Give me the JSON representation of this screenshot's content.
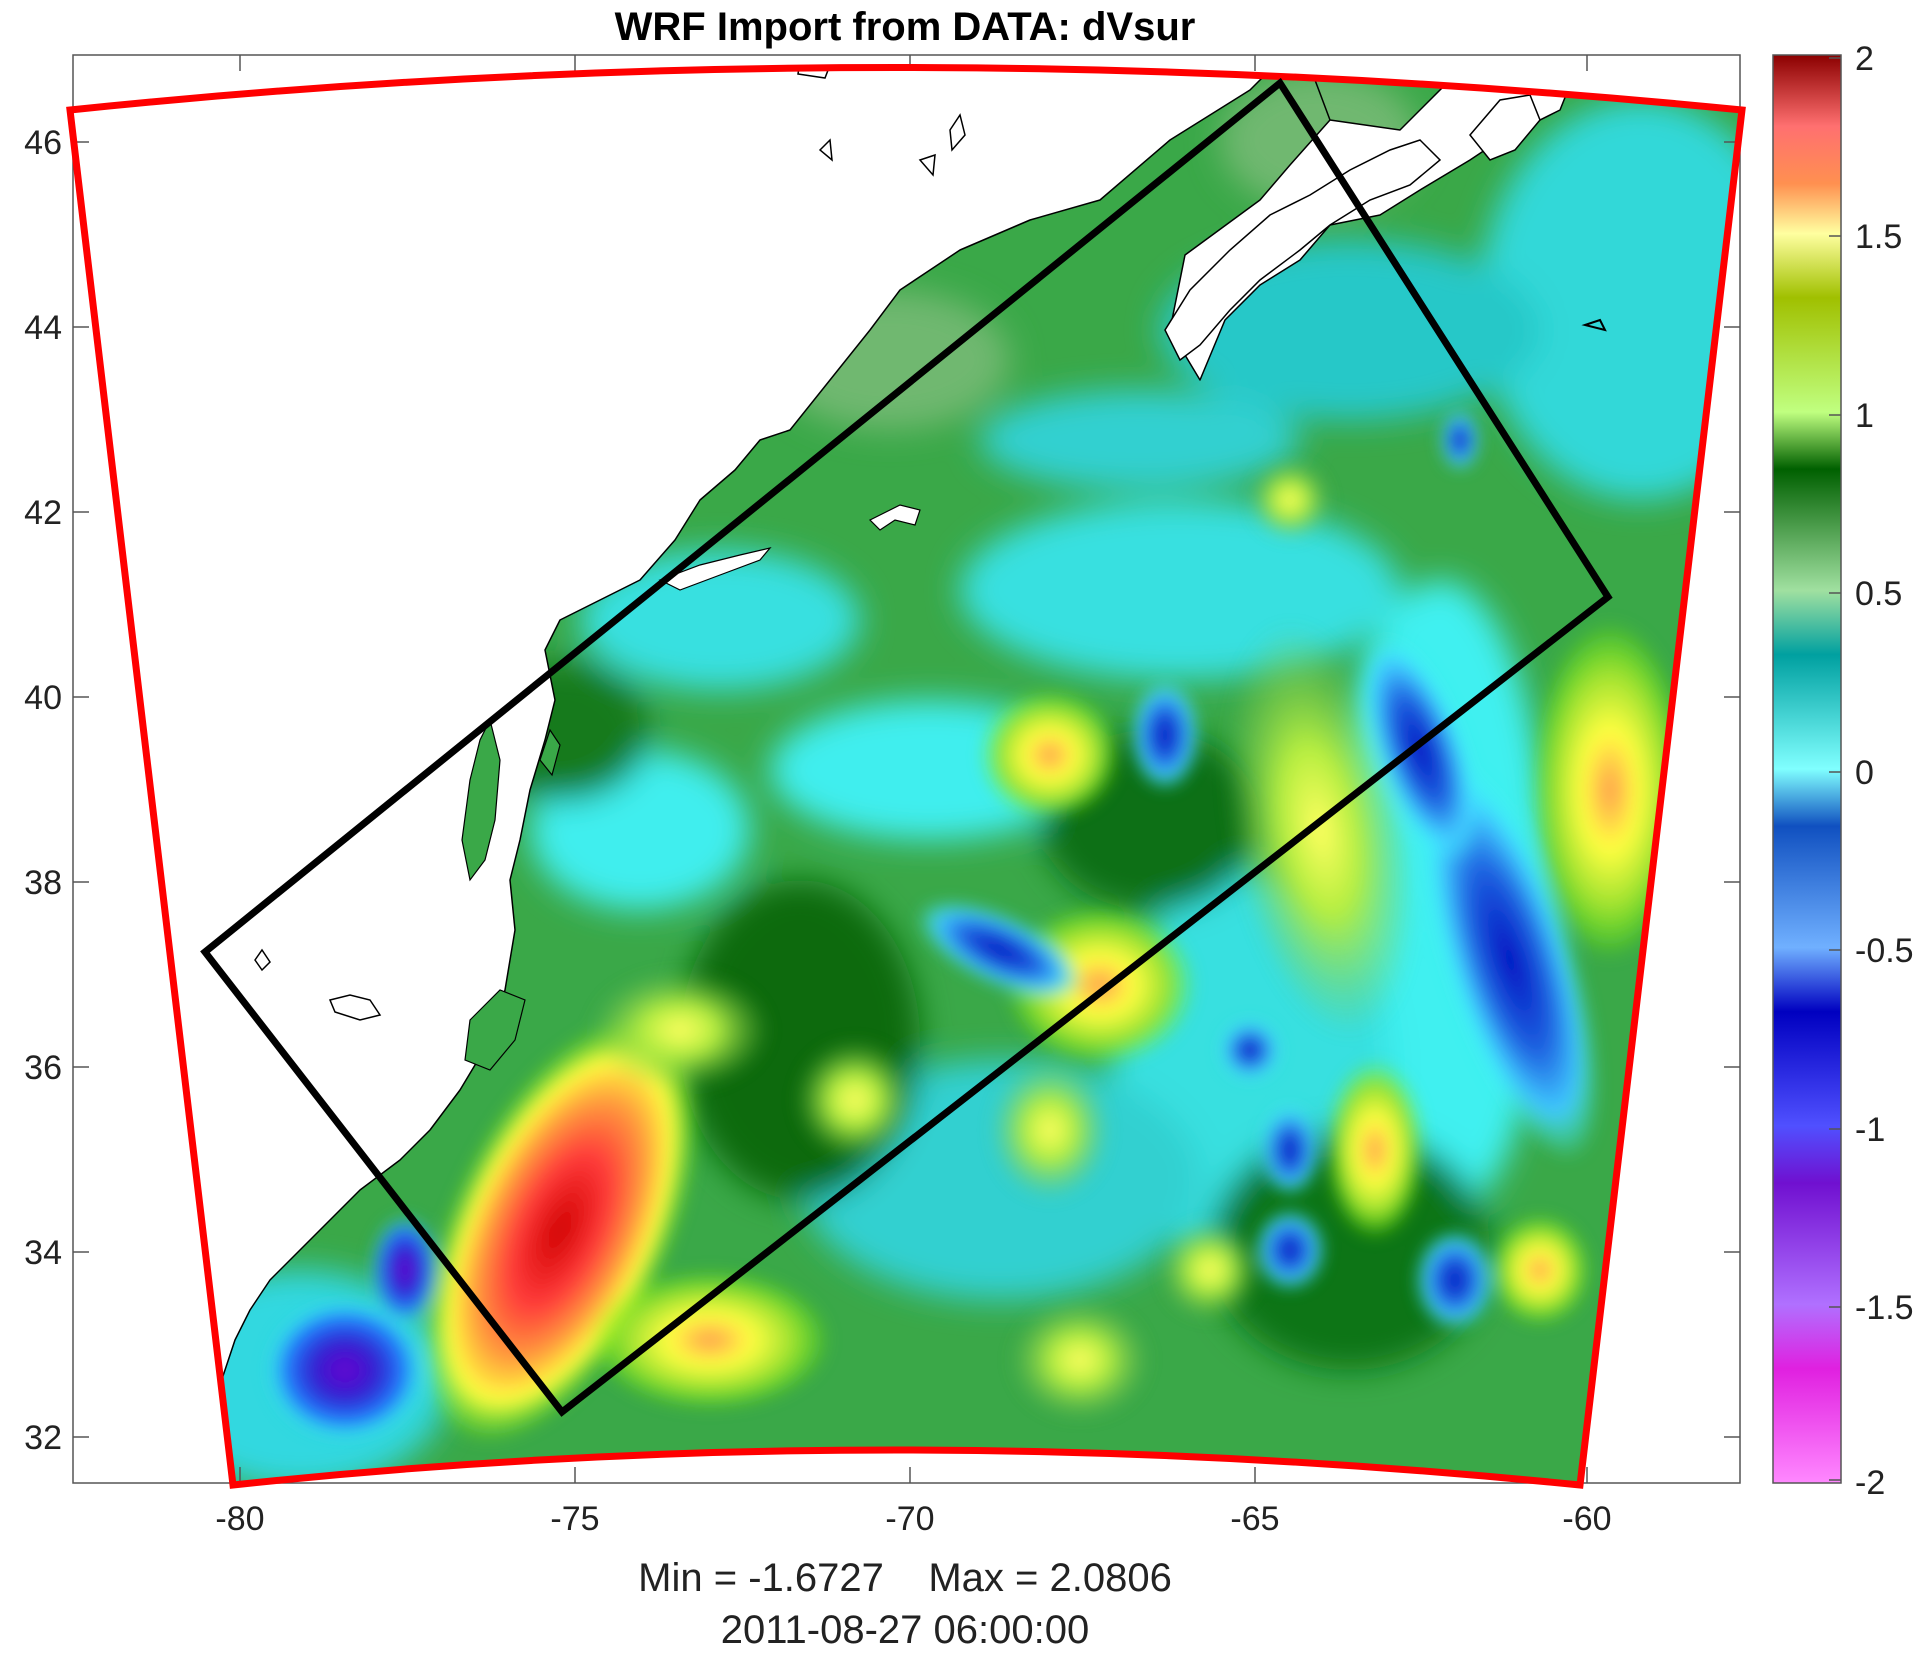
{
  "title": "WRF Import from DATA: dVsur",
  "stats": "Min = -1.6727    Max = 2.0806",
  "timestamp": "2011-08-27 06:00:00",
  "x_ticks": [
    "-80",
    "-75",
    "-70",
    "-65",
    "-60"
  ],
  "y_ticks": [
    "46",
    "44",
    "42",
    "40",
    "38",
    "36",
    "34",
    "32"
  ],
  "colorbar": {
    "ticks": [
      "2",
      "1.5",
      "1",
      "0.5",
      "0",
      "-0.5",
      "-1",
      "-1.5",
      "-2"
    ],
    "range": [
      -2,
      2
    ],
    "colors": [
      "#ee82ee",
      "#9400d3",
      "#0000cd",
      "#1e90ff",
      "#00ffff",
      "#20b2aa",
      "#006400",
      "#7cfc00",
      "#ffff00",
      "#ff8c00",
      "#ff0000",
      "#8b0000"
    ]
  },
  "map": {
    "lon_range": [
      -82.5,
      -57.6
    ],
    "lat_range": [
      31.5,
      46.9
    ],
    "outer_domain_color": "#ff0000",
    "inner_domain_color": "#000000",
    "inner_domain_corners": [
      [
        -80.5,
        37.2
      ],
      [
        -64.6,
        46.6
      ],
      [
        -59.7,
        41.1
      ],
      [
        -75.2,
        32.2
      ]
    ]
  }
}
